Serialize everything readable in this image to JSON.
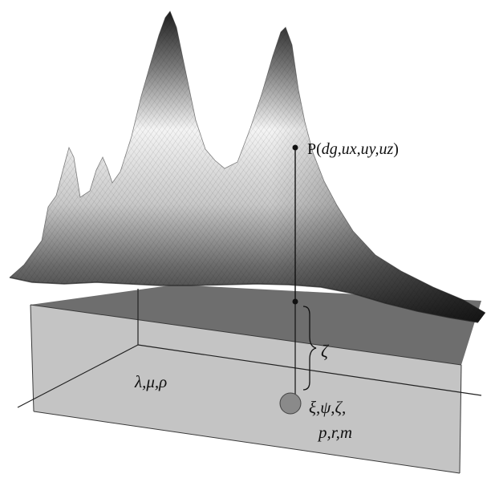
{
  "labels": {
    "point_prefix": "P(",
    "point_vars": "dg,ux,uy,uz",
    "point_suffix": ")",
    "depth_symbol": "ζ",
    "medium_params": "λ,μ,ρ",
    "source_params_line1": "ξ,ψ,ζ,",
    "source_params_line2": "p,r,m"
  },
  "colors": {
    "box_top": "#6e6e6e",
    "box_front": "#c4c4c4",
    "box_edge": "#3a3a3a",
    "source_sphere": "#8a8a8a",
    "mesh_dark": "#2a2a2a",
    "mesh_light": "#f2f2f2"
  }
}
